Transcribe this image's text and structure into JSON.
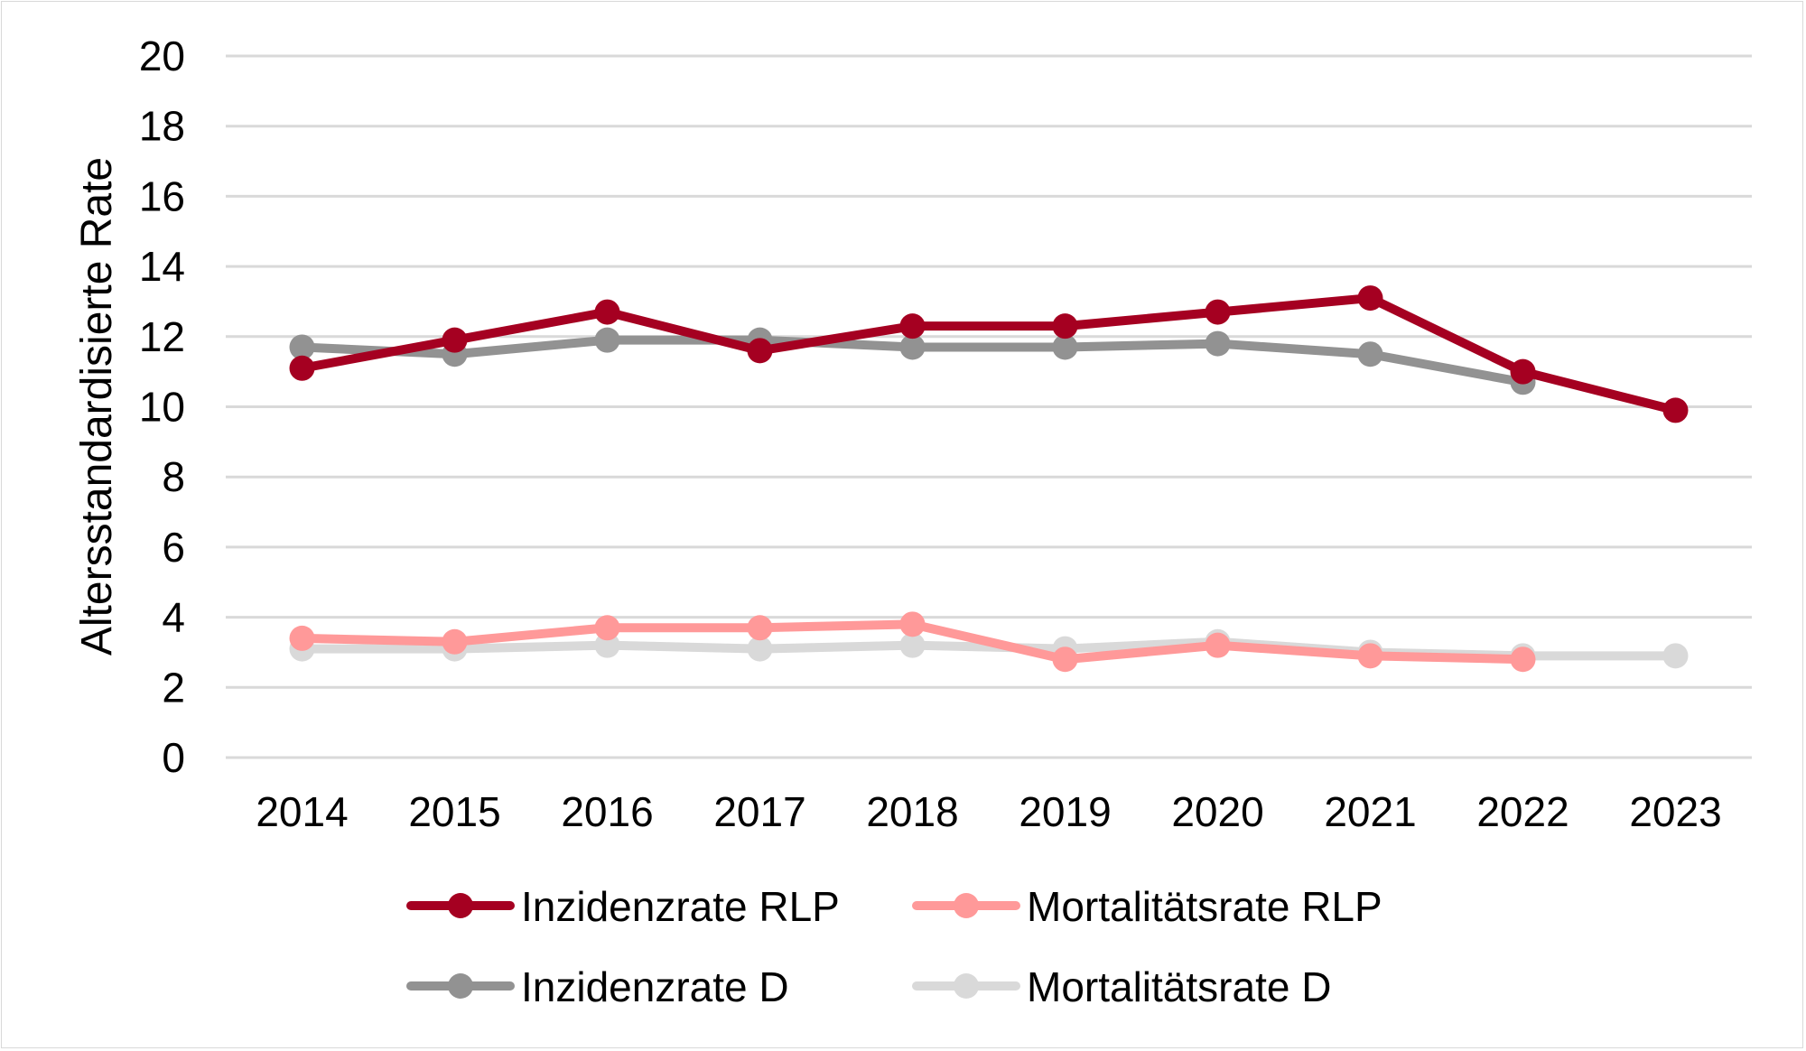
{
  "chart_data": {
    "type": "line",
    "title": "",
    "xlabel": "",
    "ylabel": "Altersstandardisierte Rate",
    "ylim": [
      0,
      20
    ],
    "ytick_step": 2,
    "grid": "horizontal",
    "legend_position": "bottom",
    "categories": [
      "2014",
      "2015",
      "2016",
      "2017",
      "2018",
      "2019",
      "2020",
      "2021",
      "2022",
      "2023"
    ],
    "series": [
      {
        "name": "Inzidenzrate RLP",
        "color": "#a50021",
        "values": [
          11.1,
          11.9,
          12.7,
          11.6,
          12.3,
          12.3,
          12.7,
          13.1,
          11.0,
          9.9
        ]
      },
      {
        "name": "Inzidenzrate D",
        "color": "#929292",
        "values": [
          11.7,
          11.5,
          11.9,
          11.9,
          11.7,
          11.7,
          11.8,
          11.5,
          10.7,
          null
        ]
      },
      {
        "name": "Mortalitätsrate RLP",
        "color": "#ff9999",
        "values": [
          3.4,
          3.3,
          3.7,
          3.7,
          3.8,
          2.8,
          3.2,
          2.9,
          2.8,
          null
        ]
      },
      {
        "name": "Mortalitätsrate D",
        "color": "#d9d9d9",
        "values": [
          3.1,
          3.1,
          3.2,
          3.1,
          3.2,
          3.1,
          3.3,
          3.0,
          2.9,
          2.9
        ]
      }
    ]
  }
}
